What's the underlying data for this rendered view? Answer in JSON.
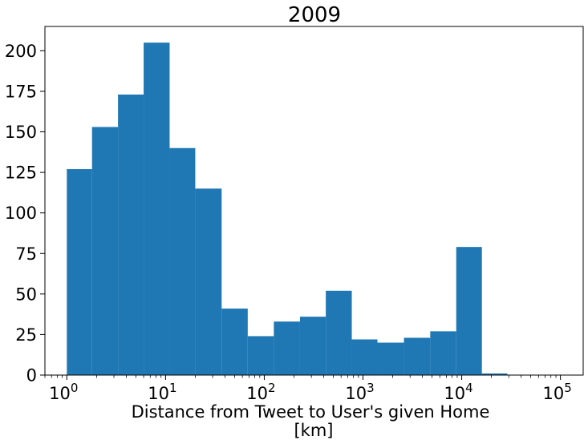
{
  "chart_data": {
    "type": "bar",
    "title": "2009",
    "xlabel_line1": "Distance from Tweet to User's given Home",
    "xlabel_line2": "[km]",
    "ylabel": "",
    "x_scale": "log",
    "xlim": [
      0.6,
      170000
    ],
    "ylim": [
      0,
      215
    ],
    "bar_color": "#1f77b4",
    "bins": [
      {
        "from": 1.0,
        "to": 1.8,
        "value": 127
      },
      {
        "from": 1.8,
        "to": 3.3,
        "value": 153
      },
      {
        "from": 3.3,
        "to": 6.0,
        "value": 173
      },
      {
        "from": 6.0,
        "to": 11.0,
        "value": 205
      },
      {
        "from": 11.0,
        "to": 20.0,
        "value": 140
      },
      {
        "from": 20.0,
        "to": 37.0,
        "value": 115
      },
      {
        "from": 37.0,
        "to": 68.0,
        "value": 41
      },
      {
        "from": 68.0,
        "to": 125.0,
        "value": 24
      },
      {
        "from": 125.0,
        "to": 230.0,
        "value": 33
      },
      {
        "from": 230.0,
        "to": 420.0,
        "value": 36
      },
      {
        "from": 420.0,
        "to": 770.0,
        "value": 52
      },
      {
        "from": 770.0,
        "to": 1400.0,
        "value": 22
      },
      {
        "from": 1400.0,
        "to": 2600.0,
        "value": 20
      },
      {
        "from": 2600.0,
        "to": 4800.0,
        "value": 23
      },
      {
        "from": 4800.0,
        "to": 8800.0,
        "value": 27
      },
      {
        "from": 8800.0,
        "to": 16000.0,
        "value": 79
      },
      {
        "from": 16000.0,
        "to": 29000.0,
        "value": 1
      }
    ],
    "x_ticks": [
      {
        "value": 1,
        "exp": "0"
      },
      {
        "value": 10,
        "exp": "1"
      },
      {
        "value": 100,
        "exp": "2"
      },
      {
        "value": 1000,
        "exp": "3"
      },
      {
        "value": 10000,
        "exp": "4"
      },
      {
        "value": 100000,
        "exp": "5"
      }
    ],
    "x_tick_base": "10",
    "y_ticks": [
      0,
      25,
      50,
      75,
      100,
      125,
      150,
      175,
      200
    ],
    "grid": false,
    "legend": "none"
  }
}
